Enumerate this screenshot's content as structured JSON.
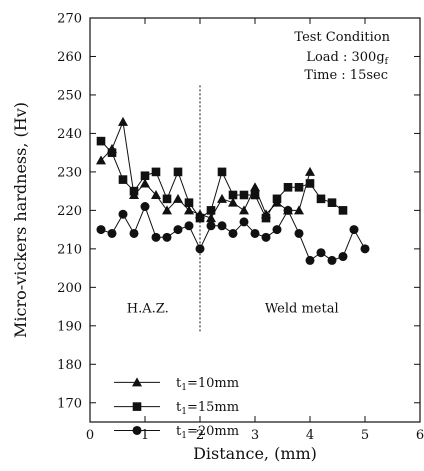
{
  "chart_data": {
    "type": "line",
    "xlabel": "Distance, (mm)",
    "ylabel": "Micro-vickers hardness, (Hv)",
    "xlim": [
      0,
      6
    ],
    "ylim": [
      165,
      270
    ],
    "x_ticks": [
      0,
      1,
      2,
      3,
      4,
      5,
      6
    ],
    "y_ticks": [
      170,
      180,
      190,
      200,
      210,
      220,
      230,
      240,
      250,
      260,
      270
    ],
    "divider_x": 2,
    "annotation": {
      "heading": "Test Condition",
      "load": "Load : 300g",
      "load_subscript": "f",
      "time": "Time : 15sec"
    },
    "regions": {
      "left": "H.A.Z.",
      "right": "Weld metal"
    },
    "legend_position": "bottom-left",
    "series": [
      {
        "name": "t1=10mm",
        "label_prefix": "t",
        "label_sub": "1",
        "label_suffix": "=10mm",
        "marker": "triangle",
        "x": [
          0.2,
          0.4,
          0.6,
          0.8,
          1.0,
          1.2,
          1.4,
          1.6,
          1.8,
          2.0,
          2.2,
          2.4,
          2.6,
          2.8,
          3.0,
          3.2,
          3.4,
          3.6,
          3.8,
          4.0
        ],
        "y": [
          233,
          236,
          243,
          224,
          227,
          224,
          220,
          223,
          220,
          219,
          218,
          223,
          222,
          220,
          226,
          219,
          222,
          220,
          220,
          230
        ]
      },
      {
        "name": "t1=15mm",
        "label_prefix": "t",
        "label_sub": "1",
        "label_suffix": "=15mm",
        "marker": "square",
        "x": [
          0.2,
          0.4,
          0.6,
          0.8,
          1.0,
          1.2,
          1.4,
          1.6,
          1.8,
          2.0,
          2.2,
          2.4,
          2.6,
          2.8,
          3.0,
          3.2,
          3.4,
          3.6,
          3.8,
          4.0,
          4.2,
          4.4,
          4.6
        ],
        "y": [
          238,
          235,
          228,
          225,
          229,
          230,
          223,
          230,
          222,
          218,
          220,
          230,
          224,
          224,
          224,
          218,
          223,
          226,
          226,
          227,
          223,
          222,
          220
        ]
      },
      {
        "name": "t1=20mm",
        "label_prefix": "t",
        "label_sub": "1",
        "label_suffix": "=20mm",
        "marker": "circle",
        "x": [
          0.2,
          0.4,
          0.6,
          0.8,
          1.0,
          1.2,
          1.4,
          1.6,
          1.8,
          2.0,
          2.2,
          2.4,
          2.6,
          2.8,
          3.0,
          3.2,
          3.4,
          3.6,
          3.8,
          4.0,
          4.2,
          4.4,
          4.6,
          4.8,
          5.0
        ],
        "y": [
          215,
          214,
          219,
          214,
          221,
          213,
          213,
          215,
          216,
          210,
          216,
          216,
          214,
          217,
          214,
          213,
          215,
          220,
          214,
          207,
          209,
          207,
          208,
          215,
          210
        ]
      }
    ]
  }
}
